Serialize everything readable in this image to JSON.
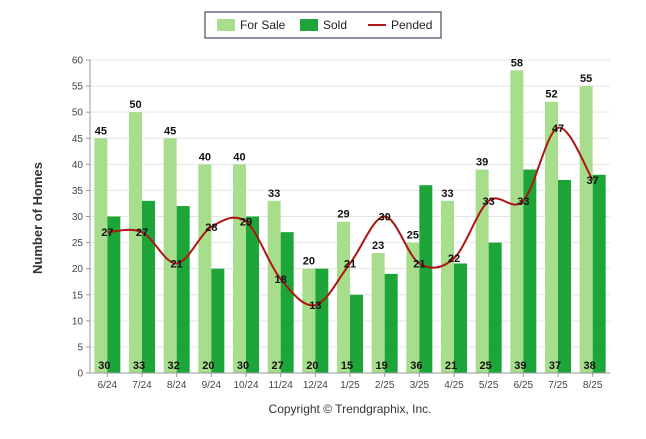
{
  "chart_data": {
    "type": "bar",
    "title": "",
    "xlabel": "",
    "ylabel": "Number of Homes",
    "ylim": [
      0,
      60
    ],
    "yticks": [
      0,
      5,
      10,
      15,
      20,
      25,
      30,
      35,
      40,
      45,
      50,
      55,
      60
    ],
    "grid": true,
    "legend_position": "top-center",
    "categories": [
      "6/24",
      "7/24",
      "8/24",
      "9/24",
      "10/24",
      "11/24",
      "12/24",
      "1/25",
      "2/25",
      "3/25",
      "4/25",
      "5/25",
      "6/25",
      "7/25",
      "8/25"
    ],
    "series": [
      {
        "name": "For Sale",
        "type": "bar",
        "color": "#a6de8c",
        "values": [
          45,
          50,
          45,
          40,
          40,
          33,
          20,
          29,
          23,
          25,
          33,
          39,
          58,
          52,
          55
        ]
      },
      {
        "name": "Sold",
        "type": "bar",
        "color": "#1ea53a",
        "values": [
          30,
          33,
          32,
          20,
          30,
          27,
          20,
          15,
          19,
          36,
          21,
          25,
          39,
          37,
          38
        ]
      },
      {
        "name": "Pended",
        "type": "line",
        "color": "#b01414",
        "values": [
          27,
          27,
          21,
          28,
          29,
          18,
          13,
          21,
          30,
          21,
          22,
          33,
          33,
          47,
          37
        ]
      }
    ],
    "credit": "Copyright © Trendgraphix, Inc."
  }
}
